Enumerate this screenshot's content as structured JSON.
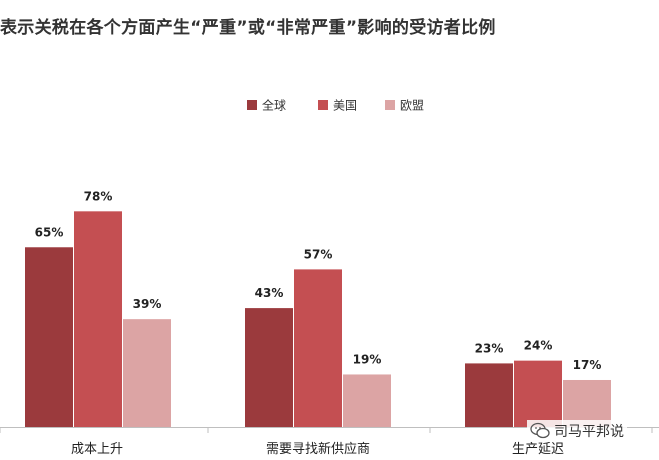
{
  "title": "表示关税在各个方面产生“严重”或“非常严重”影响的受访者比例",
  "chart_data": {
    "type": "bar",
    "categories": [
      "成本上升",
      "需要寻找新供应商",
      "生产延迟"
    ],
    "series": [
      {
        "name": "全球",
        "values": [
          65,
          43,
          23
        ],
        "color": "#9b3a3d"
      },
      {
        "name": "美国",
        "values": [
          78,
          57,
          24
        ],
        "color": "#c44f52"
      },
      {
        "name": "欧盟",
        "values": [
          39,
          19,
          17
        ],
        "color": "#dca4a4"
      }
    ],
    "value_suffix": "%",
    "ylim": [
      0,
      100
    ],
    "legend_position": "top-right",
    "grid": false
  },
  "watermark": {
    "text": "司马平邦说",
    "icon": "wechat-icon"
  }
}
